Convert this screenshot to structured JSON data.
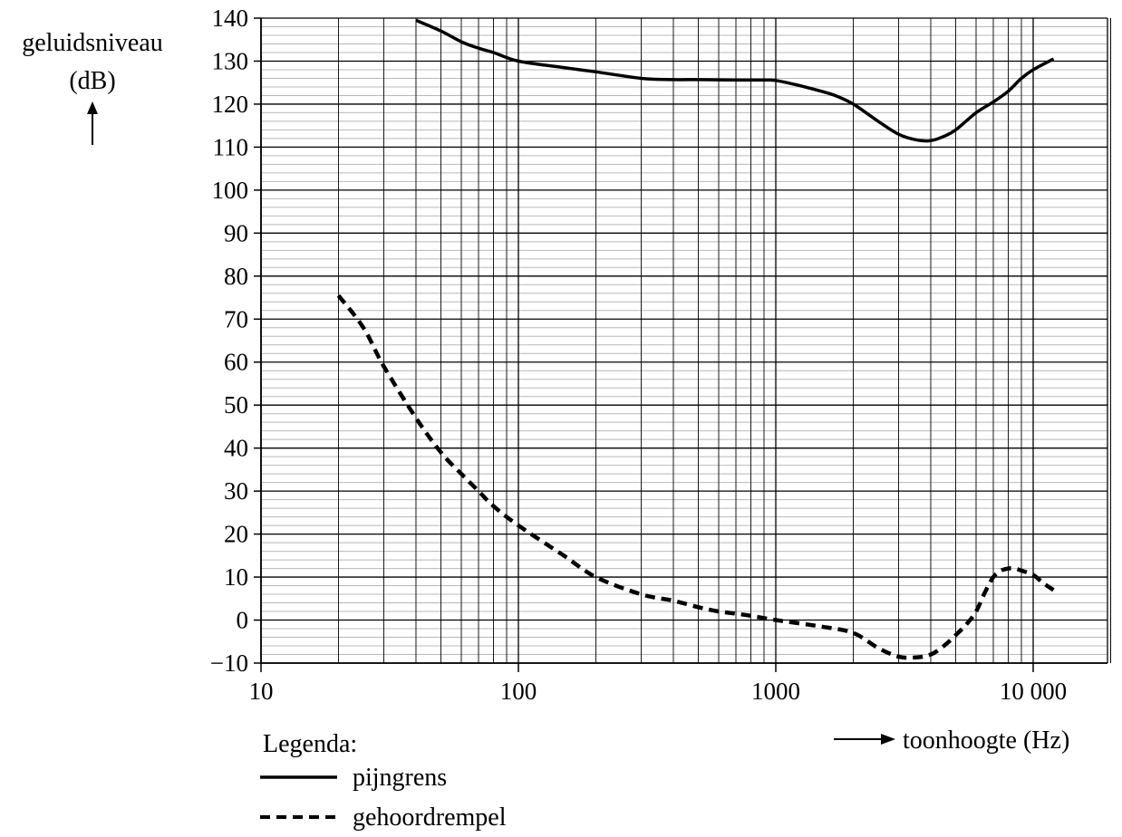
{
  "chart_data": {
    "type": "line",
    "title": "",
    "xlabel": "toonhoogte (Hz)",
    "ylabel_line1": "geluidsniveau",
    "ylabel_line2": "(dB)",
    "xscale": "log",
    "xlim": [
      10,
      20000
    ],
    "ylim": [
      -10,
      140
    ],
    "x_tick_labels": [
      {
        "value": 10,
        "label": "10"
      },
      {
        "value": 100,
        "label": "100"
      },
      {
        "value": 1000,
        "label": "1000"
      },
      {
        "value": 10000,
        "label": "10 000"
      }
    ],
    "y_ticks": [
      -10,
      0,
      10,
      20,
      30,
      40,
      50,
      60,
      70,
      80,
      90,
      100,
      110,
      120,
      130,
      140
    ],
    "y_tick_labels": [
      "−10",
      "0",
      "10",
      "20",
      "30",
      "40",
      "50",
      "60",
      "70",
      "80",
      "90",
      "100",
      "110",
      "120",
      "130",
      "140"
    ],
    "grid": true,
    "legend": {
      "title": "Legenda:",
      "placement": "bottom-left",
      "entries": [
        "pijngrens",
        "gehoordrempel"
      ]
    },
    "series": [
      {
        "name": "pijngrens",
        "style": "solid",
        "x": [
          40,
          50,
          60,
          70,
          80,
          100,
          150,
          200,
          300,
          400,
          500,
          700,
          900,
          1000,
          1200,
          1500,
          1700,
          2000,
          2500,
          3000,
          3500,
          4000,
          4500,
          5000,
          6000,
          7000,
          8000,
          9000,
          10000,
          12000
        ],
        "y": [
          139.5,
          137,
          134.5,
          133,
          132,
          130,
          128.5,
          127.5,
          126,
          125.7,
          125.7,
          125.6,
          125.6,
          125.5,
          124.5,
          123,
          122,
          120,
          116,
          113,
          111.7,
          111.5,
          112.5,
          114,
          118,
          120.5,
          123,
          126,
          128,
          130.5
        ]
      },
      {
        "name": "gehoordrempel",
        "style": "dashed",
        "x": [
          20,
          25,
          30,
          40,
          50,
          60,
          70,
          80,
          100,
          150,
          200,
          300,
          400,
          500,
          600,
          700,
          800,
          1000,
          1500,
          2000,
          2500,
          3000,
          3500,
          4000,
          4500,
          5000,
          5500,
          6000,
          6500,
          7000,
          7500,
          8000,
          8500,
          9000,
          10000,
          11000,
          12000
        ],
        "y": [
          75.5,
          68,
          59,
          47,
          39,
          34,
          30,
          26.5,
          22,
          15,
          10,
          6,
          4.5,
          3,
          2,
          1.5,
          1,
          0,
          -1.5,
          -3,
          -6.5,
          -8.5,
          -8.7,
          -8,
          -6,
          -3.5,
          -1,
          2,
          6.5,
          10,
          11.5,
          12,
          12,
          11.5,
          10.5,
          8.5,
          7
        ]
      }
    ]
  }
}
